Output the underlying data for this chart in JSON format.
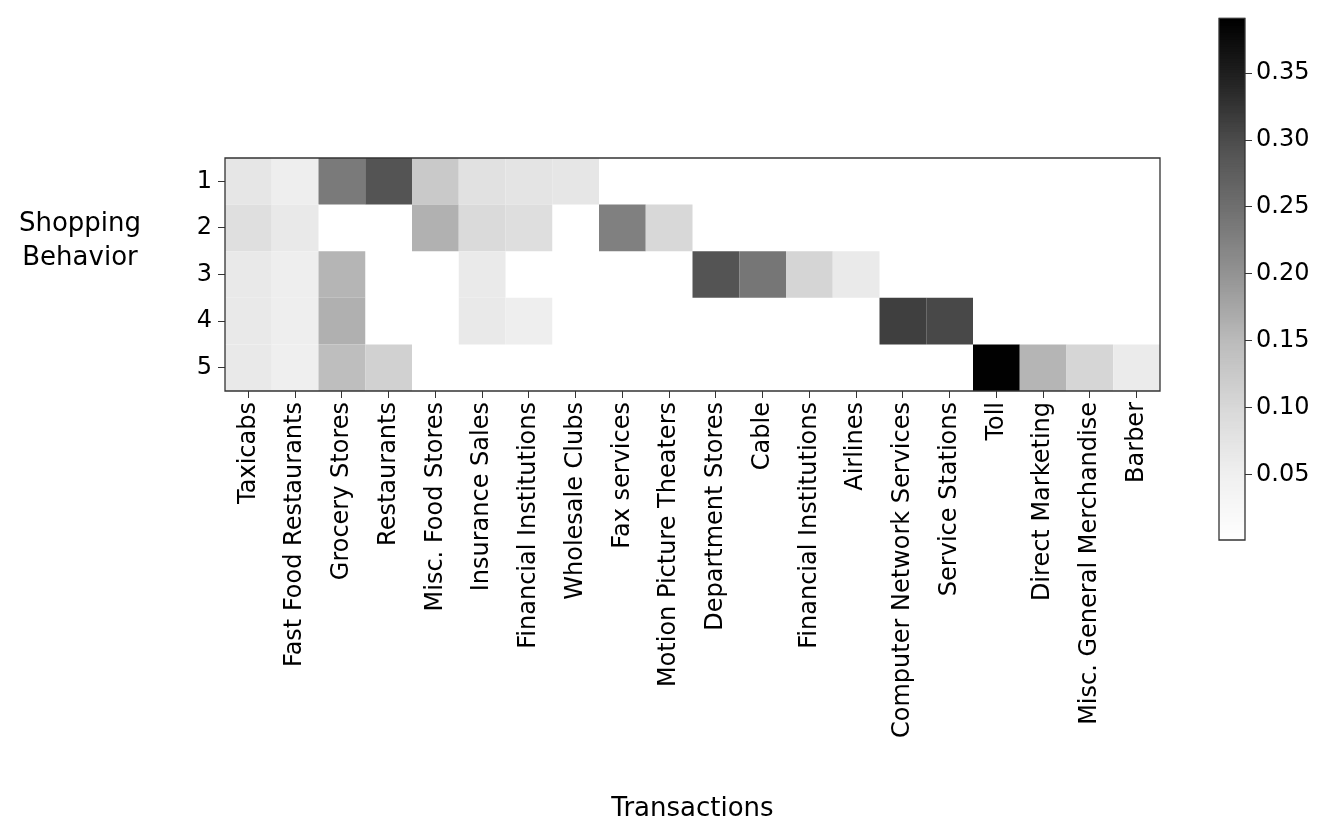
{
  "chart_data": {
    "type": "heatmap",
    "xlabel": "Transactions",
    "ylabel": "Shopping Behavior",
    "categories": [
      "Taxicabs",
      "Fast Food Restaurants",
      "Grocery Stores",
      "Restaurants",
      "Misc. Food Stores",
      "Insurance Sales",
      "Financial Institutions",
      "Wholesale Clubs",
      "Fax services",
      "Motion Picture Theaters",
      "Department Stores",
      "Cable",
      "Financial Institutions",
      "Airlines",
      "Computer Network Services",
      "Service Stations",
      "Toll",
      "Direct Marketing",
      "Misc. General Merchandise",
      "Barber"
    ],
    "y_categories": [
      "1",
      "2",
      "3",
      "4",
      "5"
    ],
    "cells": [
      [
        0.07,
        0.055,
        0.235,
        0.29,
        0.127,
        0.082,
        0.075,
        0.07,
        null,
        null,
        null,
        null,
        null,
        null,
        null,
        null,
        null,
        null,
        null,
        null
      ],
      [
        0.085,
        0.065,
        null,
        null,
        0.162,
        0.096,
        0.088,
        null,
        0.226,
        0.1,
        null,
        null,
        null,
        null,
        null,
        null,
        null,
        null,
        null,
        null
      ],
      [
        0.065,
        0.055,
        0.157,
        null,
        null,
        0.062,
        null,
        null,
        null,
        null,
        0.29,
        0.24,
        0.105,
        0.062,
        null,
        null,
        null,
        null,
        null,
        null
      ],
      [
        0.065,
        0.055,
        0.164,
        null,
        null,
        0.065,
        0.055,
        null,
        null,
        null,
        null,
        null,
        null,
        null,
        0.314,
        0.304,
        null,
        null,
        null,
        null
      ],
      [
        0.065,
        0.052,
        0.145,
        0.112,
        null,
        null,
        null,
        null,
        null,
        null,
        null,
        null,
        null,
        null,
        null,
        null,
        0.39,
        0.157,
        0.104,
        0.06
      ]
    ],
    "clim": [
      0.001,
      0.391
    ],
    "cticks": [
      {
        "value": 0.05,
        "label": "0.05"
      },
      {
        "value": 0.1,
        "label": "0.10"
      },
      {
        "value": 0.15,
        "label": "0.15"
      },
      {
        "value": 0.2,
        "label": "0.20"
      },
      {
        "value": 0.25,
        "label": "0.25"
      },
      {
        "value": 0.3,
        "label": "0.30"
      },
      {
        "value": 0.35,
        "label": "0.35"
      }
    ]
  }
}
